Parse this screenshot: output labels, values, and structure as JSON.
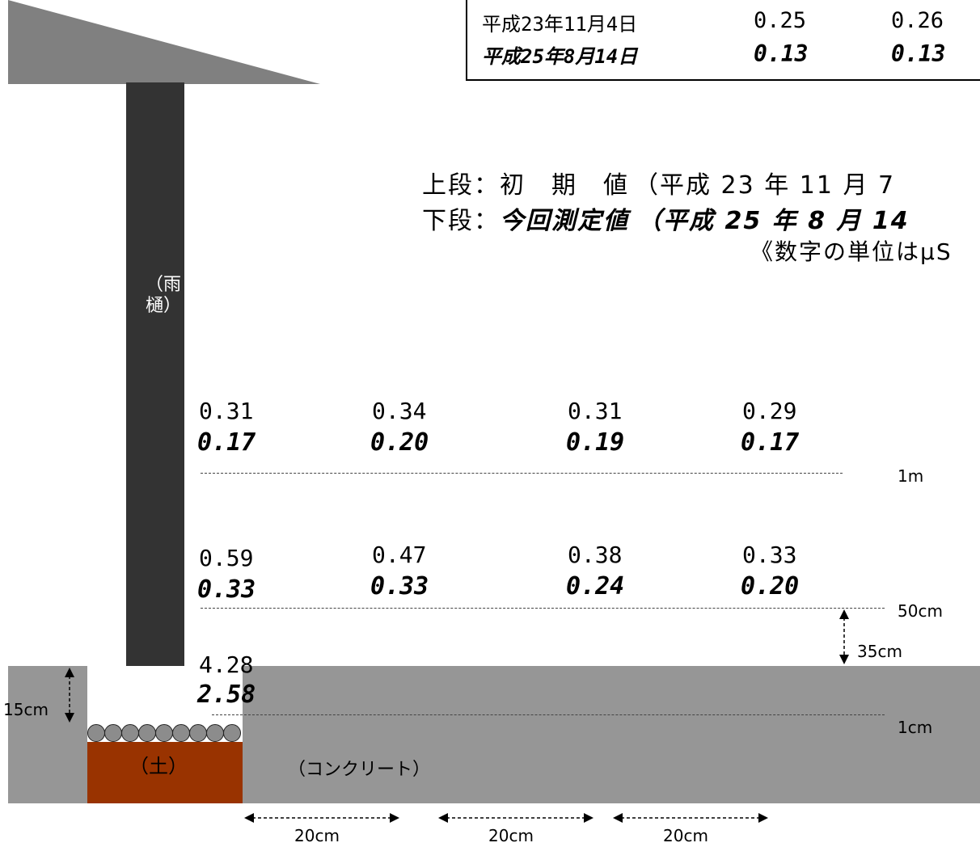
{
  "date_table": {
    "rows": [
      {
        "date": "平成23年11月4日",
        "v1": "0.25",
        "v2": "0.26",
        "emphasis": false
      },
      {
        "date": "平成25年8月14日",
        "v1": "0.13",
        "v2": "0.13",
        "emphasis": true
      }
    ]
  },
  "legend": {
    "upper_label": "上段：初　期　値",
    "upper_date": "（平成 23 年 11 月 7",
    "lower_label": "下段：",
    "lower_value_label": "今回測定値",
    "lower_date": "（平成 25 年 8 月 14",
    "unit_note": "《数字の単位はμS"
  },
  "labels": {
    "gutter": "（雨樋）",
    "soil": "（土）",
    "concrete": "（コンクリート）"
  },
  "heights": {
    "h1m": "1m",
    "h50cm": "50cm",
    "h1cm": "1cm",
    "d35cm": "35cm",
    "d15cm": "15cm"
  },
  "spacing": [
    "20cm",
    "20cm",
    "20cm"
  ],
  "measurements": {
    "row_1m": [
      {
        "initial": "0.31",
        "current": "0.17"
      },
      {
        "initial": "0.34",
        "current": "0.20"
      },
      {
        "initial": "0.31",
        "current": "0.19"
      },
      {
        "initial": "0.29",
        "current": "0.17"
      }
    ],
    "row_50cm": [
      {
        "initial": "0.59",
        "current": "0.33"
      },
      {
        "initial": "0.47",
        "current": "0.33"
      },
      {
        "initial": "0.38",
        "current": "0.24"
      },
      {
        "initial": "0.33",
        "current": "0.20"
      }
    ],
    "row_1cm": [
      {
        "initial": "4.28",
        "current": "2.58"
      }
    ]
  },
  "colors": {
    "gutter": "#333333",
    "concrete": "#969696",
    "soil": "#993300",
    "roof": "#808080"
  }
}
